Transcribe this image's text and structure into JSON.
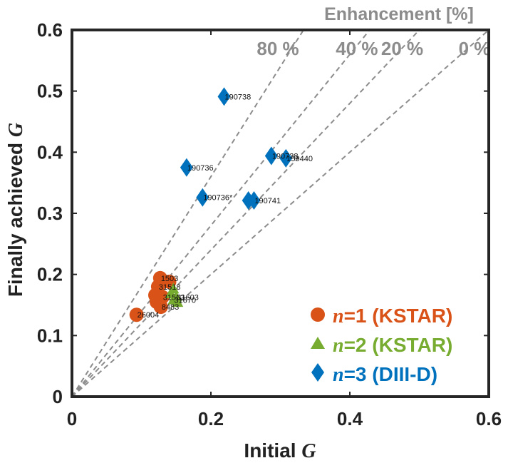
{
  "chart_data": {
    "type": "scatter",
    "title": "",
    "xlabel_prefix": "Initial ",
    "xlabel_var": "G",
    "ylabel_prefix": "Finally achieved ",
    "ylabel_var": "G",
    "xlim": [
      0,
      0.6
    ],
    "ylim": [
      0,
      0.6
    ],
    "xticks": [
      "0",
      "0.2",
      "0.4",
      "0.6"
    ],
    "xtick_values": [
      0,
      0.2,
      0.4,
      0.6
    ],
    "yticks": [
      "0",
      "0.1",
      "0.2",
      "0.3",
      "0.4",
      "0.5",
      "0.6"
    ],
    "ytick_values": [
      0,
      0.1,
      0.2,
      0.3,
      0.4,
      0.5,
      0.6
    ],
    "enhancement": {
      "title": "Enhancement [%]",
      "lines": [
        {
          "label": "80 %",
          "percent": 80
        },
        {
          "label": "40 %",
          "percent": 40
        },
        {
          "label": "20 %",
          "percent": 20
        },
        {
          "label": "0 %",
          "percent": 0
        }
      ],
      "color": "#8c8c8c"
    },
    "series": [
      {
        "name": "n=1 (KSTAR)",
        "legend_var": "n",
        "legend_rest": "=1 (KSTAR)",
        "marker": "circle",
        "color": "#d95319",
        "points": [
          {
            "x": 0.127,
            "y": 0.194,
            "label": "1503"
          },
          {
            "x": 0.14,
            "y": 0.188,
            "label": ""
          },
          {
            "x": 0.124,
            "y": 0.18,
            "label": "31518"
          },
          {
            "x": 0.12,
            "y": 0.166,
            "label": ""
          },
          {
            "x": 0.13,
            "y": 0.163,
            "label": "31563"
          },
          {
            "x": 0.122,
            "y": 0.155,
            "label": ""
          },
          {
            "x": 0.128,
            "y": 0.147,
            "label": "8483"
          },
          {
            "x": 0.093,
            "y": 0.134,
            "label": "26004"
          }
        ]
      },
      {
        "name": "n=2 (KSTAR)",
        "legend_var": "n",
        "legend_rest": "=2 (KSTAR)",
        "marker": "triangle",
        "color": "#77ac30",
        "points": [
          {
            "x": 0.146,
            "y": 0.176,
            "label": ""
          },
          {
            "x": 0.142,
            "y": 0.168,
            "label": ""
          },
          {
            "x": 0.15,
            "y": 0.163,
            "label": "31603"
          },
          {
            "x": 0.146,
            "y": 0.158,
            "label": "31670"
          },
          {
            "x": 0.152,
            "y": 0.154,
            "label": ""
          }
        ]
      },
      {
        "name": "n=3 (DIII-D)",
        "legend_var": "n",
        "legend_rest": "=3 (DIII-D)",
        "marker": "diamond",
        "color": "#0072bd",
        "points": [
          {
            "x": 0.219,
            "y": 0.491,
            "label": "190738"
          },
          {
            "x": 0.287,
            "y": 0.394,
            "label": "190738"
          },
          {
            "x": 0.308,
            "y": 0.39,
            "label": "159440"
          },
          {
            "x": 0.165,
            "y": 0.375,
            "label": "190736"
          },
          {
            "x": 0.188,
            "y": 0.326,
            "label": "190736*"
          },
          {
            "x": 0.254,
            "y": 0.321,
            "label": ""
          },
          {
            "x": 0.262,
            "y": 0.321,
            "label": "190741"
          }
        ]
      }
    ]
  }
}
